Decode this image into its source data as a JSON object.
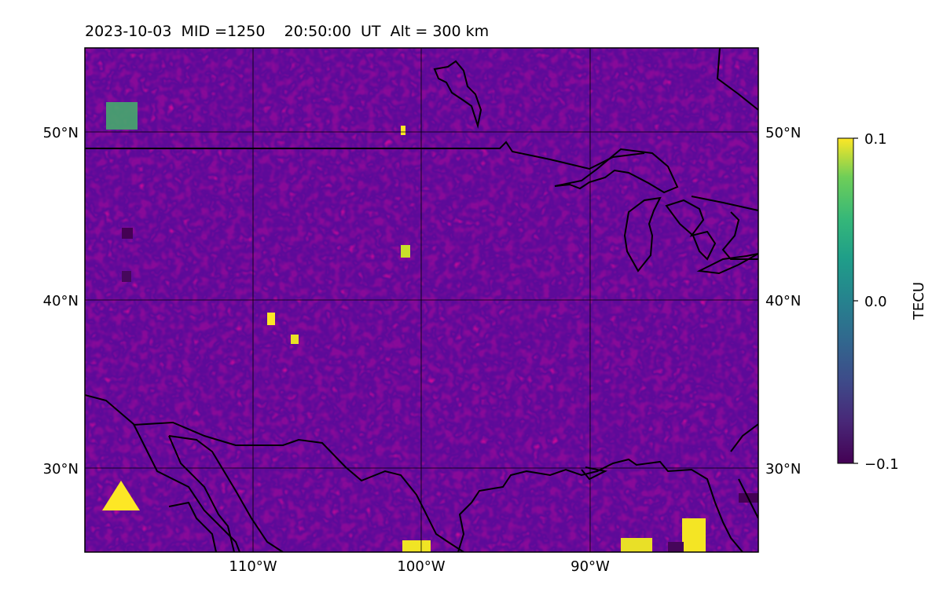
{
  "header": {
    "title": "2023-10-03  MID =1250    20:50:00  UT  Alt = 300 km"
  },
  "map": {
    "lon_range": [
      -120,
      -80
    ],
    "lat_range": [
      25,
      55
    ],
    "lat_gridlines": [
      30,
      40,
      50
    ],
    "lon_gridlines": [
      -110,
      -100,
      -90
    ],
    "lat_labels": [
      "30°N",
      "40°N",
      "50°N"
    ],
    "lon_labels": [
      "110°W",
      "100°W",
      "90°W"
    ]
  },
  "colorbar": {
    "label": "TECU",
    "colormap": "viridis",
    "min": -0.1,
    "max": 0.1,
    "tick_labels": [
      "0.1",
      "0.0",
      "−0.1"
    ]
  }
}
